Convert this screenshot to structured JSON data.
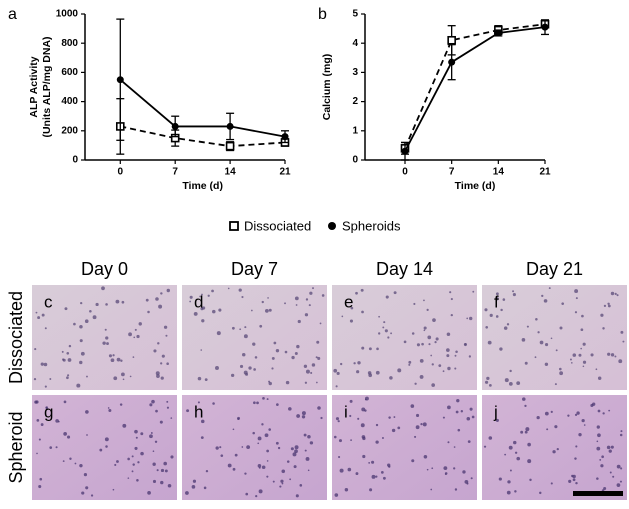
{
  "chart_data": [
    {
      "type": "line",
      "label": "a",
      "ylabel": [
        "ALP Activity",
        "(Units ALP/mg DNA)"
      ],
      "xlabel": "Time (d)",
      "x": [
        0,
        7,
        14,
        21
      ],
      "xlim": [
        -4.5,
        21
      ],
      "xticks": [
        0,
        7,
        14,
        21
      ],
      "ylim": [
        0,
        1000
      ],
      "yticks": [
        0,
        200,
        400,
        600,
        800,
        1000
      ],
      "series": [
        {
          "name": "Dissociated",
          "color": "#000000",
          "marker": "square",
          "dash": true,
          "values": [
            230,
            150,
            95,
            120
          ],
          "errors": [
            190,
            55,
            30,
            25
          ]
        },
        {
          "name": "Spheroids",
          "color": "#000000",
          "marker": "circle",
          "dash": false,
          "values": [
            550,
            230,
            230,
            160
          ],
          "errors": [
            415,
            70,
            90,
            40
          ]
        }
      ]
    },
    {
      "type": "line",
      "label": "b",
      "ylabel": [
        "Calcium (mg)"
      ],
      "xlabel": "Time (d)",
      "x": [
        0,
        7,
        14,
        21
      ],
      "xlim": [
        -6,
        21
      ],
      "xticks": [
        0,
        7,
        14,
        21
      ],
      "ylim": [
        0,
        5
      ],
      "yticks": [
        0,
        1,
        2,
        3,
        4,
        5
      ],
      "series": [
        {
          "name": "Dissociated",
          "color": "#000000",
          "marker": "square",
          "dash": true,
          "values": [
            0.4,
            4.1,
            4.45,
            4.65
          ],
          "errors": [
            0.2,
            0.5,
            0.15,
            0.1
          ]
        },
        {
          "name": "Spheroids",
          "color": "#000000",
          "marker": "circle",
          "dash": false,
          "values": [
            0.3,
            3.35,
            4.35,
            4.55
          ],
          "errors": [
            0.3,
            0.6,
            0.1,
            0.25
          ]
        }
      ]
    }
  ],
  "histology": {
    "columns": [
      "Day 0",
      "Day 7",
      "Day 14",
      "Day 21"
    ],
    "rows": [
      "Dissociated",
      "Spheroid"
    ],
    "panels": [
      [
        "c",
        "d",
        "e",
        "f"
      ],
      [
        "g",
        "h",
        "i",
        "j"
      ]
    ]
  }
}
